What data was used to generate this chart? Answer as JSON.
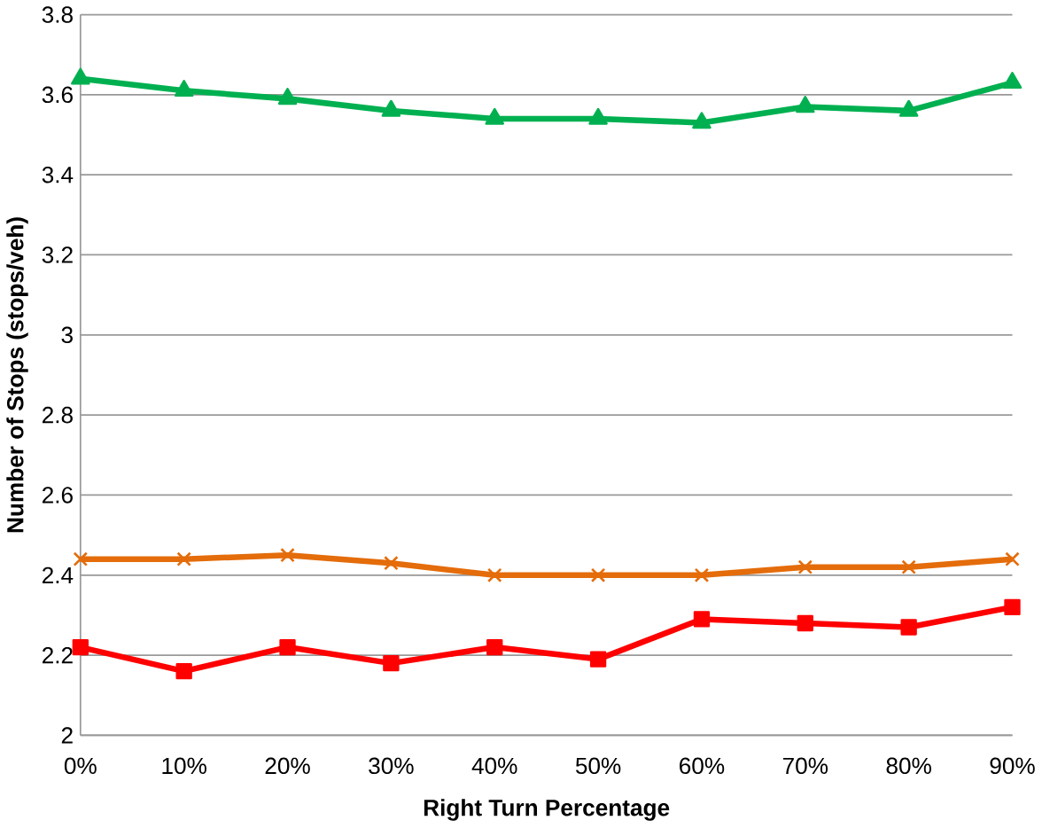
{
  "chart_data": {
    "type": "line",
    "xlabel": "Right Turn Percentage",
    "ylabel": "Number of Stops (stops/veh)",
    "categories": [
      "0%",
      "10%",
      "20%",
      "30%",
      "40%",
      "50%",
      "60%",
      "70%",
      "80%",
      "90%"
    ],
    "series": [
      {
        "color": "#00b050",
        "marker": "triangle",
        "values": [
          3.64,
          3.61,
          3.59,
          3.56,
          3.54,
          3.54,
          3.53,
          3.57,
          3.56,
          3.63
        ]
      },
      {
        "color": "#e46c0a",
        "marker": "cross",
        "values": [
          2.44,
          2.44,
          2.45,
          2.43,
          2.4,
          2.4,
          2.4,
          2.42,
          2.42,
          2.44
        ]
      },
      {
        "color": "#ff0000",
        "marker": "square",
        "values": [
          2.22,
          2.16,
          2.22,
          2.18,
          2.22,
          2.19,
          2.29,
          2.28,
          2.27,
          2.32
        ]
      }
    ],
    "ylim": [
      2,
      3.8
    ],
    "yticks": [
      2,
      2.2,
      2.4,
      2.6,
      2.8,
      3,
      3.2,
      3.4,
      3.6,
      3.8
    ],
    "grid": "y"
  }
}
